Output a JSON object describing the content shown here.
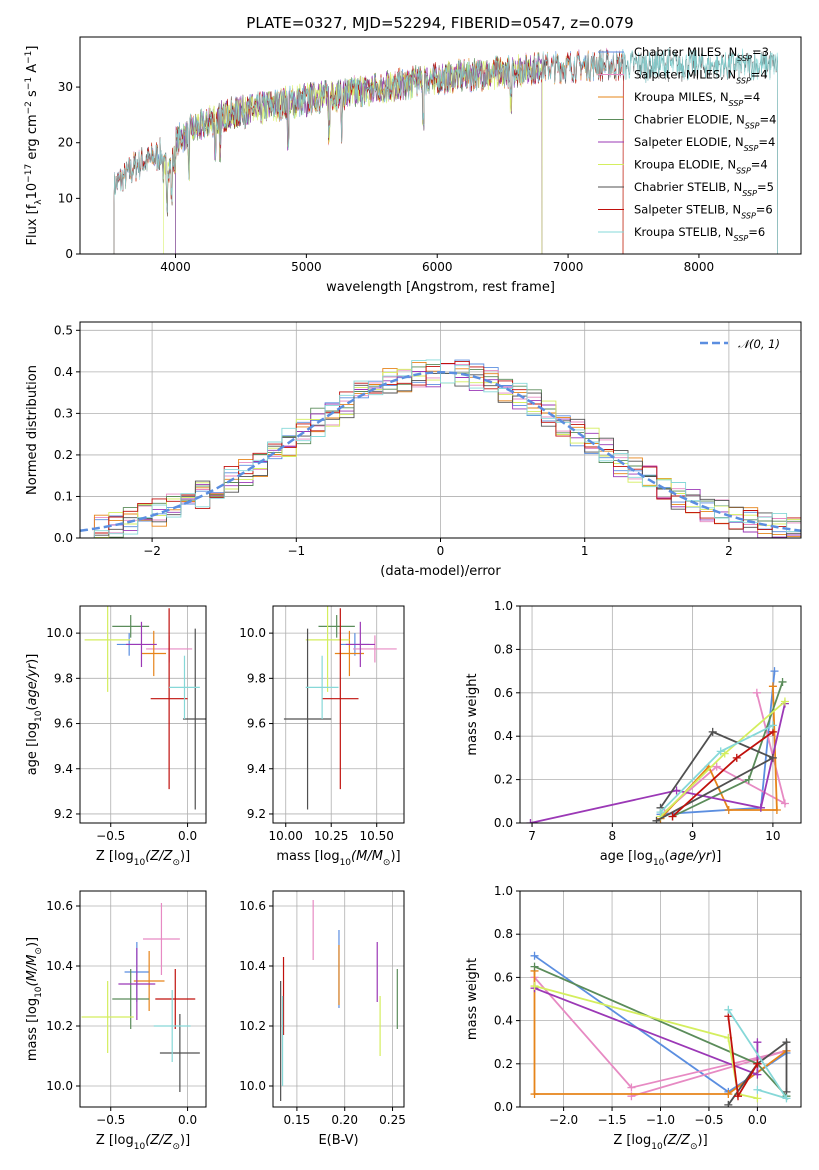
{
  "title": "PLATE=0327, MJD=52294, FIBERID=0547, z=0.079",
  "colors": {
    "Chabrier MILES": "#5b8ee0",
    "Salpeter MILES": "#e78ac3",
    "Kroupa MILES": "#e6841a",
    "Chabrier ELODIE": "#5b8c5a",
    "Salpeter ELODIE": "#9b38b6",
    "Kroupa ELODIE": "#d4ee5e",
    "Chabrier STELIB": "#505050",
    "Salpeter STELIB": "#c0100c",
    "Kroupa STELIB": "#86d8d8",
    "gauss": "#5b8ee0"
  },
  "chart_data": [
    {
      "id": "spectrum",
      "type": "line",
      "xlabel": "wavelength [Angstrom, rest frame]",
      "ylabel": "Flux [f_λ 10^-17 erg cm^-2 s^-1 A^-1]",
      "xlim": [
        3270,
        8780
      ],
      "ylim": [
        0,
        39
      ],
      "xticks": [
        "4000",
        "5000",
        "6000",
        "7000",
        "8000"
      ],
      "yticks": [
        "0",
        "10",
        "20",
        "30"
      ],
      "grid": false,
      "legend_position": "right",
      "legend": [
        "Chabrier MILES, N_SSP=3",
        "Salpeter MILES, N_SSP=4",
        "Kroupa MILES, N_SSP=4",
        "Chabrier ELODIE, N_SSP=4",
        "Salpeter ELODIE, N_SSP=4",
        "Kroupa ELODIE, N_SSP=4",
        "Chabrier STELIB, N_SSP=5",
        "Salpeter STELIB, N_SSP=6",
        "Kroupa STELIB, N_SSP=6"
      ],
      "continuum": {
        "x": [
          3530,
          3700,
          3900,
          4100,
          4400,
          4800,
          5200,
          5600,
          6000,
          6400,
          6800,
          7200,
          7400
        ],
        "y": [
          12,
          16,
          18,
          22,
          25,
          27,
          28.5,
          30,
          31.5,
          32.5,
          33.5,
          34,
          34
        ]
      },
      "series_ranges": [
        {
          "name": "Chabrier MILES",
          "x": [
            3530,
            7420
          ]
        },
        {
          "name": "Salpeter MILES",
          "x": [
            3530,
            7420
          ]
        },
        {
          "name": "Kroupa MILES",
          "x": [
            3530,
            7420
          ]
        },
        {
          "name": "Chabrier ELODIE",
          "x": [
            4000,
            6800
          ]
        },
        {
          "name": "Salpeter ELODIE",
          "x": [
            4000,
            6800
          ]
        },
        {
          "name": "Kroupa ELODIE",
          "x": [
            3910,
            6800
          ]
        },
        {
          "name": "Chabrier STELIB",
          "x": [
            3530,
            8600
          ]
        },
        {
          "name": "Salpeter STELIB",
          "x": [
            3530,
            7420
          ]
        },
        {
          "name": "Kroupa STELIB",
          "x": [
            3530,
            8600
          ]
        }
      ]
    },
    {
      "id": "residual-histogram",
      "type": "bar",
      "xlabel": "(data-model)/error",
      "ylabel": "Normed distribution",
      "xlim": [
        -2.5,
        2.5
      ],
      "ylim": [
        0,
        0.52
      ],
      "xticks": [
        "−2",
        "−1",
        "0",
        "1",
        "2"
      ],
      "yticks": [
        "0.0",
        "0.1",
        "0.2",
        "0.3",
        "0.4",
        "0.5"
      ],
      "grid": true,
      "legend_position": "top-right",
      "legend": [
        "𝒩(0, 1)"
      ],
      "bin_width": 0.1,
      "bin_start": -2.5,
      "bins": 50,
      "gaussian": {
        "mean": 0,
        "sigma": 1
      }
    },
    {
      "id": "age-vs-Z",
      "type": "scatter",
      "xlabel": "Z [log10(Z/Z⊙)]",
      "ylabel": "age [log10(age/yr)]",
      "xlim": [
        -0.7,
        0.12
      ],
      "ylim": [
        9.16,
        10.12
      ],
      "xticks": [
        "−0.5",
        "0.0"
      ],
      "yticks": [
        "9.2",
        "9.4",
        "9.6",
        "9.8",
        "10.0"
      ],
      "grid": true,
      "points": [
        {
          "name": "Chabrier MILES",
          "x": -0.38,
          "y": 9.95,
          "xerr": 0.08,
          "yerr": 0.05
        },
        {
          "name": "Salpeter MILES",
          "x": -0.12,
          "y": 9.93,
          "xerr": 0.15,
          "yerr": 0.06
        },
        {
          "name": "Kroupa MILES",
          "x": -0.22,
          "y": 9.91,
          "xerr": 0.08,
          "yerr": 0.1
        },
        {
          "name": "Chabrier ELODIE",
          "x": -0.37,
          "y": 10.03,
          "xerr": 0.12,
          "yerr": 0.05
        },
        {
          "name": "Salpeter ELODIE",
          "x": -0.3,
          "y": 9.95,
          "xerr": 0.1,
          "yerr": 0.1
        },
        {
          "name": "Kroupa ELODIE",
          "x": -0.52,
          "y": 9.97,
          "xerr": 0.15,
          "yerr": 0.23
        },
        {
          "name": "Chabrier STELIB",
          "x": 0.05,
          "y": 9.62,
          "xerr": 0.08,
          "yerr": 0.4
        },
        {
          "name": "Salpeter STELIB",
          "x": -0.12,
          "y": 9.71,
          "xerr": 0.12,
          "yerr": 0.4
        },
        {
          "name": "Kroupa STELIB",
          "x": -0.02,
          "y": 9.76,
          "xerr": 0.1,
          "yerr": 0.14
        }
      ]
    },
    {
      "id": "age-vs-mass",
      "type": "scatter",
      "xlabel": "mass [log10(M/M⊙)]",
      "ylabel": "",
      "xlim": [
        9.93,
        10.65
      ],
      "ylim": [
        9.16,
        10.12
      ],
      "xticks": [
        "10.00",
        "10.25",
        "10.50"
      ],
      "yticks": [
        "9.2",
        "9.4",
        "9.6",
        "9.8",
        "10.0"
      ],
      "grid": true,
      "points": [
        {
          "name": "Chabrier MILES",
          "x": 10.38,
          "y": 9.95,
          "xerr": 0.08,
          "yerr": 0.05
        },
        {
          "name": "Salpeter MILES",
          "x": 10.49,
          "y": 9.93,
          "xerr": 0.12,
          "yerr": 0.06
        },
        {
          "name": "Kroupa MILES",
          "x": 10.35,
          "y": 9.91,
          "xerr": 0.08,
          "yerr": 0.1
        },
        {
          "name": "Chabrier ELODIE",
          "x": 10.28,
          "y": 10.03,
          "xerr": 0.1,
          "yerr": 0.05
        },
        {
          "name": "Salpeter ELODIE",
          "x": 10.41,
          "y": 9.95,
          "xerr": 0.08,
          "yerr": 0.1
        },
        {
          "name": "Kroupa ELODIE",
          "x": 10.23,
          "y": 9.97,
          "xerr": 0.12,
          "yerr": 0.23
        },
        {
          "name": "Chabrier STELIB",
          "x": 10.12,
          "y": 9.62,
          "xerr": 0.13,
          "yerr": 0.4
        },
        {
          "name": "Salpeter STELIB",
          "x": 10.3,
          "y": 9.71,
          "xerr": 0.1,
          "yerr": 0.4
        },
        {
          "name": "Kroupa STELIB",
          "x": 10.2,
          "y": 9.76,
          "xerr": 0.09,
          "yerr": 0.14
        }
      ]
    },
    {
      "id": "mass-weight-vs-age",
      "type": "line",
      "xlabel": "age [log10(age/yr)]",
      "ylabel": "mass weight",
      "xlim": [
        6.85,
        10.35
      ],
      "ylim": [
        0,
        1.0
      ],
      "xticks": [
        "7",
        "8",
        "9",
        "10"
      ],
      "yticks": [
        "0.0",
        "0.2",
        "0.4",
        "0.6",
        "0.8",
        "1.0"
      ],
      "grid": true,
      "series": [
        {
          "name": "Chabrier MILES",
          "x": [
            8.6,
            9.85,
            10.02
          ],
          "y": [
            0.04,
            0.07,
            0.7
          ]
        },
        {
          "name": "Salpeter MILES",
          "x": [
            8.65,
            9.3,
            10.15,
            9.8
          ],
          "y": [
            0.05,
            0.26,
            0.09,
            0.6
          ]
        },
        {
          "name": "Kroupa MILES",
          "x": [
            8.6,
            9.2,
            9.45,
            10.05,
            10.0
          ],
          "y": [
            0.02,
            0.26,
            0.06,
            0.06,
            0.63
          ]
        },
        {
          "name": "Chabrier ELODIE",
          "x": [
            8.75,
            9.7,
            10.12
          ],
          "y": [
            0.03,
            0.2,
            0.65
          ]
        },
        {
          "name": "Salpeter ELODIE",
          "x": [
            6.98,
            8.8,
            9.85,
            10.15
          ],
          "y": [
            0.0,
            0.15,
            0.07,
            0.55
          ]
        },
        {
          "name": "Kroupa ELODIE",
          "x": [
            8.6,
            9.4,
            10.15
          ],
          "y": [
            0.03,
            0.32,
            0.56
          ]
        },
        {
          "name": "Chabrier STELIB",
          "x": [
            8.6,
            9.25,
            10.0,
            8.55
          ],
          "y": [
            0.07,
            0.42,
            0.3,
            0.01
          ]
        },
        {
          "name": "Salpeter STELIB",
          "x": [
            8.75,
            9.55,
            10.0
          ],
          "y": [
            0.03,
            0.3,
            0.42
          ]
        },
        {
          "name": "Kroupa STELIB",
          "x": [
            8.6,
            9.35,
            10.0
          ],
          "y": [
            0.05,
            0.33,
            0.45
          ]
        }
      ]
    },
    {
      "id": "mass-vs-Z",
      "type": "scatter",
      "xlabel": "Z [log10(Z/Z⊙)]",
      "ylabel": "mass [log10(M/M⊙)]",
      "xlim": [
        -0.7,
        0.12
      ],
      "ylim": [
        9.93,
        10.65
      ],
      "xticks": [
        "−0.5",
        "0.0"
      ],
      "yticks": [
        "10.0",
        "10.2",
        "10.4",
        "10.6"
      ],
      "grid": true,
      "points": [
        {
          "name": "Chabrier MILES",
          "x": -0.33,
          "y": 10.38,
          "xerr": 0.08,
          "yerr": 0.1
        },
        {
          "name": "Salpeter MILES",
          "x": -0.17,
          "y": 10.49,
          "xerr": 0.12,
          "yerr": 0.12
        },
        {
          "name": "Kroupa MILES",
          "x": -0.25,
          "y": 10.35,
          "xerr": 0.1,
          "yerr": 0.1
        },
        {
          "name": "Chabrier ELODIE",
          "x": -0.37,
          "y": 10.29,
          "xerr": 0.12,
          "yerr": 0.1
        },
        {
          "name": "Salpeter ELODIE",
          "x": -0.33,
          "y": 10.34,
          "xerr": 0.12,
          "yerr": 0.12
        },
        {
          "name": "Kroupa ELODIE",
          "x": -0.52,
          "y": 10.23,
          "xerr": 0.17,
          "yerr": 0.12
        },
        {
          "name": "Chabrier STELIB",
          "x": -0.05,
          "y": 10.11,
          "xerr": 0.13,
          "yerr": 0.13
        },
        {
          "name": "Salpeter STELIB",
          "x": -0.08,
          "y": 10.29,
          "xerr": 0.13,
          "yerr": 0.1
        },
        {
          "name": "Kroupa STELIB",
          "x": -0.1,
          "y": 10.2,
          "xerr": 0.12,
          "yerr": 0.12
        }
      ]
    },
    {
      "id": "mass-vs-EBV",
      "type": "scatter",
      "xlabel": "E(B-V)",
      "ylabel": "",
      "xlim": [
        0.125,
        0.262
      ],
      "ylim": [
        9.93,
        10.65
      ],
      "xticks": [
        "0.15",
        "0.20",
        "0.25"
      ],
      "yticks": [
        "10.0",
        "10.2",
        "10.4",
        "10.6"
      ],
      "grid": true,
      "points": [
        {
          "name": "Chabrier MILES",
          "x": 0.194,
          "y": 10.39,
          "xerr": 0,
          "yerr": 0.13
        },
        {
          "name": "Salpeter MILES",
          "x": 0.167,
          "y": 10.52,
          "xerr": 0,
          "yerr": 0.1
        },
        {
          "name": "Kroupa MILES",
          "x": 0.194,
          "y": 10.37,
          "xerr": 0,
          "yerr": 0.1
        },
        {
          "name": "Chabrier ELODIE",
          "x": 0.255,
          "y": 10.29,
          "xerr": 0,
          "yerr": 0.1
        },
        {
          "name": "Salpeter ELODIE",
          "x": 0.234,
          "y": 10.38,
          "xerr": 0,
          "yerr": 0.1
        },
        {
          "name": "Kroupa ELODIE",
          "x": 0.237,
          "y": 10.2,
          "xerr": 0,
          "yerr": 0.1
        },
        {
          "name": "Chabrier STELIB",
          "x": 0.133,
          "y": 10.15,
          "xerr": 0,
          "yerr": 0.2
        },
        {
          "name": "Salpeter STELIB",
          "x": 0.136,
          "y": 10.3,
          "xerr": 0,
          "yerr": 0.13
        },
        {
          "name": "Kroupa STELIB",
          "x": 0.135,
          "y": 10.15,
          "xerr": 0,
          "yerr": 0.15
        }
      ]
    },
    {
      "id": "mass-weight-vs-Z",
      "type": "line",
      "xlabel": "Z [log10(Z/Z⊙)]",
      "ylabel": "mass weight",
      "xlim": [
        -2.45,
        0.45
      ],
      "ylim": [
        0,
        1.0
      ],
      "xticks": [
        "−2.0",
        "−1.5",
        "−1.0",
        "−0.5",
        "0.0"
      ],
      "yticks": [
        "0.0",
        "0.2",
        "0.4",
        "0.6",
        "0.8",
        "1.0"
      ],
      "grid": true,
      "series": [
        {
          "name": "Chabrier MILES",
          "x": [
            -2.3,
            -0.3,
            0.3
          ],
          "y": [
            0.7,
            0.07,
            0.25
          ]
        },
        {
          "name": "Salpeter MILES",
          "x": [
            -2.3,
            -1.3,
            0.3,
            -1.3
          ],
          "y": [
            0.6,
            0.09,
            0.26,
            0.05
          ]
        },
        {
          "name": "Kroupa MILES",
          "x": [
            -2.3,
            -2.3,
            -0.3,
            0.3
          ],
          "y": [
            0.63,
            0.06,
            0.06,
            0.26
          ]
        },
        {
          "name": "Chabrier ELODIE",
          "x": [
            -2.3,
            0.0,
            0.3
          ],
          "y": [
            0.65,
            0.2,
            0.05
          ]
        },
        {
          "name": "Salpeter ELODIE",
          "x": [
            -2.3,
            0.0,
            0.0
          ],
          "y": [
            0.55,
            0.15,
            0.3
          ]
        },
        {
          "name": "Kroupa ELODIE",
          "x": [
            -2.3,
            -0.3,
            -0.2,
            0.0
          ],
          "y": [
            0.56,
            0.32,
            0.06,
            0.04
          ]
        },
        {
          "name": "Chabrier STELIB",
          "x": [
            -0.3,
            0.0,
            0.3,
            0.3
          ],
          "y": [
            0.01,
            0.2,
            0.3,
            0.07
          ]
        },
        {
          "name": "Salpeter STELIB",
          "x": [
            -0.3,
            -0.2,
            0.0
          ],
          "y": [
            0.42,
            0.05,
            0.2
          ]
        },
        {
          "name": "Kroupa STELIB",
          "x": [
            -0.3,
            0.3,
            0.0
          ],
          "y": [
            0.45,
            0.04,
            0.08
          ]
        }
      ]
    }
  ]
}
